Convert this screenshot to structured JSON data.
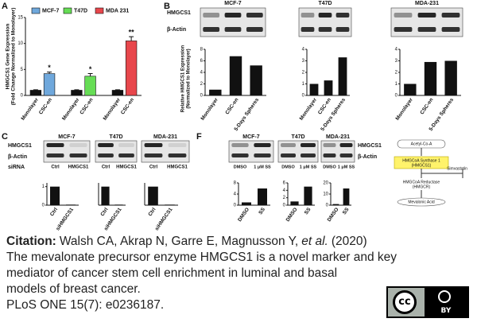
{
  "panel_labels": [
    "A",
    "B",
    "C",
    "F"
  ],
  "blot_rows": {
    "B": [
      "HMGCS1",
      "β-Actin"
    ],
    "C": [
      "HMGCS1",
      "β-Actin",
      "siRNA"
    ],
    "F": [
      "HMGCS1",
      "β-Actin"
    ]
  },
  "lanes": {
    "C": [
      "Ctrl",
      "HMGCS1"
    ],
    "F": [
      "DMSO",
      "1 μM SS"
    ]
  },
  "chart_data": [
    {
      "type": "grouped_bar",
      "ylabel": [
        "HMGCS1 Gene Expression",
        "(Fold Change Normalized to Monolayer)"
      ],
      "categories": [
        "Monolayer",
        "CSC-en"
      ],
      "base_color": "#111111",
      "series": [
        {
          "name": "MCF-7",
          "color": "#6fa8dc",
          "values": [
            1,
            4.2
          ],
          "errors": [
            0.1,
            0.3
          ],
          "annotation": "*"
        },
        {
          "name": "T47D",
          "color": "#66dd55",
          "values": [
            1,
            3.7
          ],
          "errors": [
            0.1,
            0.5
          ],
          "annotation": "*"
        },
        {
          "name": "MDA 231",
          "color": "#e8474c",
          "values": [
            1,
            10.5
          ],
          "errors": [
            0.1,
            0.8
          ],
          "annotation": "**"
        }
      ],
      "ylim": [
        0,
        15
      ],
      "yticks": [
        0,
        5,
        10,
        15
      ]
    },
    {
      "type": "bar",
      "title": "MCF-7",
      "ylabel": [
        "Relative HMGCS1 Expression",
        "(Normalized to Monolayer)"
      ],
      "categories": [
        "Monolayer",
        "CSC-en",
        "5-Days Spheres"
      ],
      "values": [
        1,
        6.8,
        5.2
      ],
      "color": "#111111",
      "ylim": [
        0,
        8
      ],
      "yticks": [
        0,
        2,
        4,
        6,
        8
      ]
    },
    {
      "type": "bar",
      "title": "T47D",
      "categories": [
        "Monolayer",
        "CSC-en",
        "5-Days Spheres"
      ],
      "values": [
        1,
        1.3,
        3.3
      ],
      "color": "#111111",
      "ylim": [
        0,
        4
      ],
      "yticks": [
        0,
        1,
        2,
        3,
        4
      ]
    },
    {
      "type": "bar",
      "title": "MDA-231",
      "categories": [
        "Monolayer",
        "CSC-en",
        "5-Days Spheres"
      ],
      "values": [
        1,
        2.9,
        3.0
      ],
      "color": "#111111",
      "ylim": [
        0,
        4
      ],
      "yticks": [
        0,
        1,
        2,
        3,
        4
      ]
    },
    {
      "type": "bar",
      "title": "MCF-7",
      "categories": [
        "Ctrl",
        "siHMGCS1"
      ],
      "values": [
        1,
        0.03
      ],
      "color": "#111111",
      "ylim": [
        0,
        1.2
      ],
      "yticks": [
        0,
        1
      ]
    },
    {
      "type": "bar",
      "title": "T47D",
      "categories": [
        "Ctrl",
        "siHMGCS1"
      ],
      "values": [
        1,
        0.03
      ],
      "color": "#111111",
      "ylim": [
        0,
        1.2
      ]
    },
    {
      "type": "bar",
      "title": "MDA-231",
      "categories": [
        "Ctrl",
        "siHMGCS1"
      ],
      "values": [
        1,
        0.03
      ],
      "color": "#111111",
      "ylim": [
        0,
        1.2
      ]
    },
    {
      "type": "bar",
      "title": "MCF-7",
      "categories": [
        "DMSO",
        "SS"
      ],
      "values": [
        1,
        6
      ],
      "color": "#111111",
      "ylim": [
        0,
        8
      ],
      "yticks": [
        0,
        4,
        8
      ]
    },
    {
      "type": "bar",
      "title": "T47D",
      "categories": [
        "DMSO",
        "SS"
      ],
      "values": [
        1,
        5
      ],
      "color": "#111111",
      "ylim": [
        0,
        6
      ],
      "yticks": [
        0,
        2,
        4,
        6
      ]
    },
    {
      "type": "bar",
      "title": "MDA-231",
      "categories": [
        "DMSO",
        "SS"
      ],
      "values": [
        1,
        15
      ],
      "color": "#111111",
      "ylim": [
        0,
        20
      ],
      "yticks": [
        0,
        10,
        20
      ]
    }
  ],
  "pathway": {
    "start": "Acetyl-Co-A",
    "enzyme1": [
      "HMGCoA Synthase 1",
      "(HMGCS1)"
    ],
    "enzyme2": [
      "HMGCoA Reductase",
      "(HMGCR)"
    ],
    "inhibitor": "Simvastatin",
    "product": "Mevalonic Acid"
  },
  "citation": {
    "label": "Citation:",
    "authors": "Walsh CA, Akrap N, Garre E, Magnusson Y,",
    "etal": "et al.",
    "year": "(2020)",
    "title_lines": [
      "The mevalonate precursor enzyme HMGCS1 is a novel marker and key",
      "mediator of cancer stem cell enrichment in luminal and basal",
      "models of breast cancer."
    ],
    "journal": "PLoS ONE 15(7): e0236187."
  },
  "license": {
    "cc": "cc",
    "by": "BY"
  }
}
